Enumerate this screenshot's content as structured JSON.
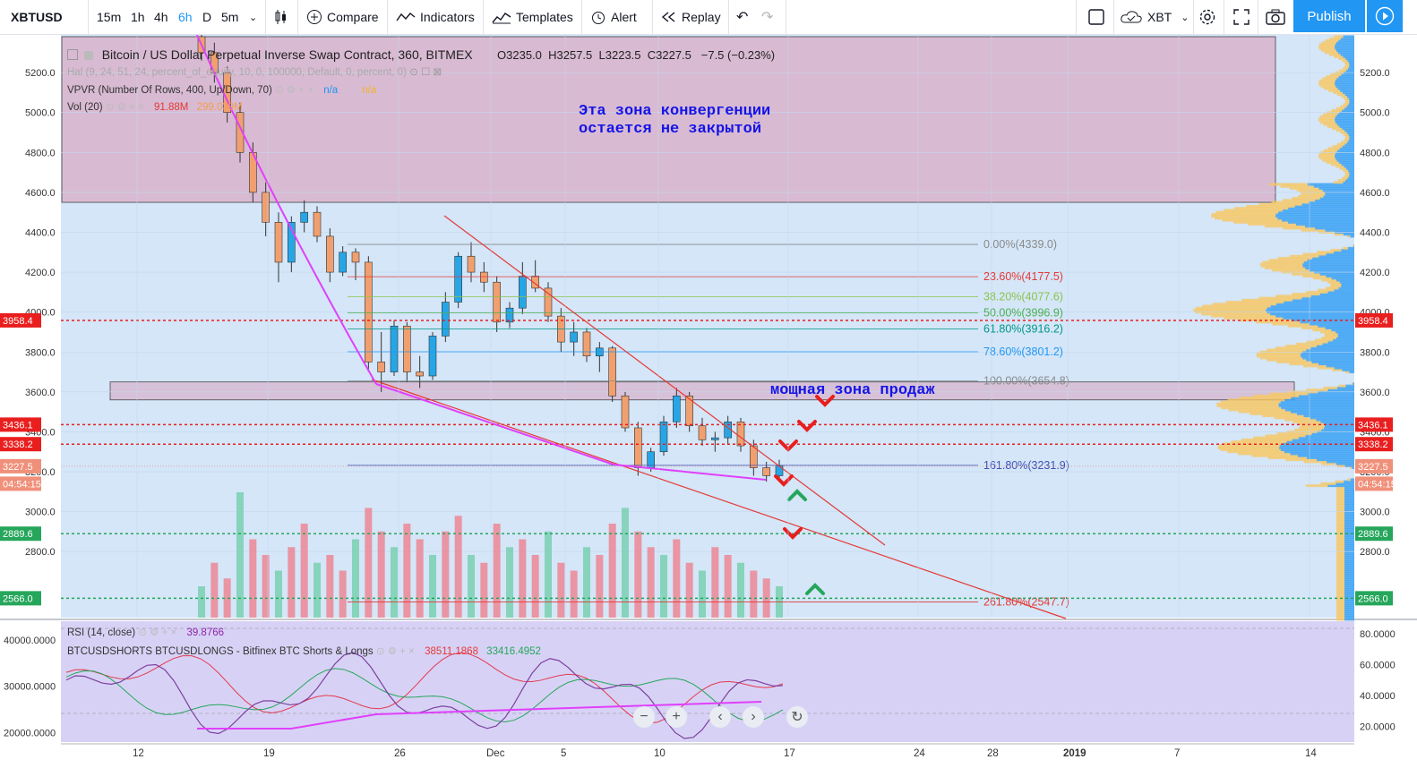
{
  "toolbar": {
    "symbol": "XBTUSD",
    "intervals": [
      "15m",
      "1h",
      "4h",
      "6h",
      "D",
      "5m"
    ],
    "active_interval": "6h",
    "compare": "Compare",
    "indicators": "Indicators",
    "templates": "Templates",
    "alert": "Alert",
    "replay": "Replay",
    "currency": "XBT",
    "publish": "Publish"
  },
  "legend": {
    "title": "Bitcoin / US Dollar Perpetual Inverse Swap Contract, 360, BITMEX",
    "o_label": "O",
    "o": "3235.0",
    "h_label": "H",
    "h": "3257.5",
    "l_label": "L",
    "l": "3223.5",
    "c_label": "C",
    "c": "3227.5",
    "change": "−7.5 (−0.23%)",
    "hal": "Hal (9, 24, 51, 24, percent_of_equity, 10, 0, 100000, Default, 0, percent, 0)",
    "vpvr": "VPVR (Number Of Rows, 400, Up/Down, 70)",
    "vpvr_v1": "n/a",
    "vpvr_v2": "n/a",
    "vol": "Vol (20)",
    "vol_v1": "91.88M",
    "vol_v2": "299.039M",
    "rsi": "RSI (14, close)",
    "rsi_val": "39.8766",
    "shorts": "BTCUSDSHORTS BTCUSDLONGS - Bitfinex BTC Shorts & Longs",
    "shorts_v1": "38511.1868",
    "shorts_v2": "33416.4952"
  },
  "annotations": {
    "zone_line1": "Эта зона конвергенции",
    "zone_line2": "остается не закрытой",
    "sell_zone": "мощная зона продаж"
  },
  "price_axis": {
    "ticks": [
      "5200.0",
      "5000.0",
      "4800.0",
      "4600.0",
      "4400.0",
      "4200.0",
      "4000.0",
      "3800.0",
      "3600.0",
      "3400.0",
      "3200.0",
      "3000.0",
      "2800.0"
    ],
    "tick_values": [
      5200,
      5000,
      4800,
      4600,
      4400,
      4200,
      4000,
      3800,
      3600,
      3400,
      3200,
      3000,
      2800
    ],
    "tags_right": [
      {
        "text": "3958.4",
        "value": 3958.4,
        "color": "#e91e1e"
      },
      {
        "text": "3436.1",
        "value": 3436.1,
        "color": "#e91e1e"
      },
      {
        "text": "3338.2",
        "value": 3338.2,
        "color": "#e91e1e"
      },
      {
        "text": "3227.5",
        "value": 3227.5,
        "color": "#f0907a"
      },
      {
        "text": "04:54:15",
        "value": 3140,
        "color": "#f0907a"
      },
      {
        "text": "2889.6",
        "value": 2889.6,
        "color": "#26a65b"
      },
      {
        "text": "2566.0",
        "value": 2566.0,
        "color": "#26a65b"
      }
    ],
    "tags_left": [
      {
        "text": "3958.4",
        "value": 3958.4,
        "color": "#e91e1e"
      },
      {
        "text": "3436.1",
        "value": 3436.1,
        "color": "#e91e1e"
      },
      {
        "text": "3338.2",
        "value": 3338.2,
        "color": "#e91e1e"
      },
      {
        "text": "3227.5",
        "value": 3227.5,
        "color": "#f0907a"
      },
      {
        "text": "04:54:15",
        "value": 3140,
        "color": "#f0907a"
      },
      {
        "text": "2889.6",
        "value": 2889.6,
        "color": "#26a65b"
      },
      {
        "text": "2566.0",
        "value": 2566.0,
        "color": "#26a65b"
      }
    ]
  },
  "fib": [
    {
      "label": "0.00%(4339.0)",
      "value": 4339.0,
      "color": "#8a8a8a"
    },
    {
      "label": "23.60%(4177.5)",
      "value": 4177.5,
      "color": "#e53935"
    },
    {
      "label": "38.20%(4077.6)",
      "value": 4077.6,
      "color": "#8bc34a"
    },
    {
      "label": "50.00%(3996.9)",
      "value": 3996.9,
      "color": "#4caf50"
    },
    {
      "label": "61.80%(3916.2)",
      "value": 3916.2,
      "color": "#009688"
    },
    {
      "label": "78.60%(3801.2)",
      "value": 3801.2,
      "color": "#2196f3"
    },
    {
      "label": "100.00%(3654.8)",
      "value": 3654.8,
      "color": "#8a8a8a"
    },
    {
      "label": "161.80%(3231.9)",
      "value": 3231.9,
      "color": "#3f51b5"
    },
    {
      "label": "261.80%(2547.7)",
      "value": 2547.7,
      "color": "#e53935"
    }
  ],
  "time_axis": {
    "labels": [
      "12",
      "19",
      "26",
      "Dec",
      "5",
      "10",
      "17",
      "24",
      "28",
      "2019",
      "7",
      "14"
    ]
  },
  "rsi_axis": {
    "ticks": [
      "80.0000",
      "60.0000",
      "40.0000",
      "20.0000"
    ],
    "tick_values": [
      80,
      60,
      40,
      20
    ]
  },
  "shorts_axis": {
    "ticks": [
      "40000.0000",
      "30000.0000",
      "20000.0000"
    ],
    "tick_values": [
      40000,
      30000,
      20000
    ]
  },
  "chart_data": {
    "type": "candlestick",
    "symbol": "XBTUSD",
    "interval": "6h",
    "ylim": [
      2460,
      5380
    ],
    "candles_ohlc": [
      [
        5380,
        5400,
        5260,
        5300
      ],
      [
        5300,
        5350,
        5150,
        5200
      ],
      [
        5200,
        5230,
        4950,
        5000
      ],
      [
        5000,
        5050,
        4750,
        4800
      ],
      [
        4800,
        4850,
        4550,
        4600
      ],
      [
        4600,
        4650,
        4380,
        4450
      ],
      [
        4450,
        4500,
        4150,
        4250
      ],
      [
        4250,
        4480,
        4200,
        4450
      ],
      [
        4450,
        4560,
        4400,
        4500
      ],
      [
        4500,
        4530,
        4350,
        4380
      ],
      [
        4380,
        4420,
        4150,
        4200
      ],
      [
        4200,
        4330,
        4180,
        4300
      ],
      [
        4300,
        4320,
        4160,
        4250
      ],
      [
        4250,
        4280,
        3700,
        3750
      ],
      [
        3750,
        3900,
        3600,
        3700
      ],
      [
        3700,
        3960,
        3680,
        3930
      ],
      [
        3930,
        3950,
        3650,
        3700
      ],
      [
        3700,
        3780,
        3620,
        3680
      ],
      [
        3680,
        3900,
        3660,
        3880
      ],
      [
        3880,
        4100,
        3850,
        4050
      ],
      [
        4050,
        4300,
        4020,
        4280
      ],
      [
        4280,
        4350,
        4150,
        4200
      ],
      [
        4200,
        4250,
        4100,
        4150
      ],
      [
        4150,
        4180,
        3900,
        3950
      ],
      [
        3950,
        4050,
        3920,
        4020
      ],
      [
        4020,
        4250,
        3990,
        4180
      ],
      [
        4180,
        4260,
        4100,
        4120
      ],
      [
        4120,
        4150,
        3950,
        3980
      ],
      [
        3980,
        4020,
        3800,
        3850
      ],
      [
        3850,
        3950,
        3780,
        3900
      ],
      [
        3900,
        3920,
        3750,
        3780
      ],
      [
        3780,
        3850,
        3700,
        3820
      ],
      [
        3820,
        3830,
        3550,
        3580
      ],
      [
        3580,
        3600,
        3400,
        3420
      ],
      [
        3420,
        3450,
        3180,
        3220
      ],
      [
        3220,
        3320,
        3200,
        3300
      ],
      [
        3300,
        3480,
        3280,
        3450
      ],
      [
        3450,
        3620,
        3420,
        3580
      ],
      [
        3580,
        3600,
        3400,
        3430
      ],
      [
        3430,
        3470,
        3330,
        3360
      ],
      [
        3360,
        3400,
        3300,
        3370
      ],
      [
        3370,
        3480,
        3340,
        3450
      ],
      [
        3450,
        3470,
        3300,
        3330
      ],
      [
        3330,
        3360,
        3180,
        3220
      ],
      [
        3220,
        3250,
        3150,
        3180
      ],
      [
        3180,
        3260,
        3160,
        3230
      ]
    ],
    "volume": [
      20,
      35,
      25,
      80,
      50,
      40,
      30,
      45,
      60,
      35,
      40,
      30,
      50,
      70,
      55,
      45,
      60,
      50,
      40,
      55,
      65,
      40,
      35,
      60,
      45,
      50,
      40,
      55,
      35,
      30,
      45,
      40,
      60,
      70,
      55,
      45,
      40,
      50,
      35,
      30,
      45,
      40,
      35,
      30,
      25,
      20
    ],
    "horizontal_levels": [
      3958.4,
      3436.1,
      3338.2,
      2889.6,
      2566.0
    ],
    "current_price": 3227.5,
    "zones": [
      {
        "name": "convergence-zone",
        "from": 4550,
        "to": 5380
      },
      {
        "name": "sell-zone",
        "from": 3560,
        "to": 3650
      }
    ]
  },
  "nav": {
    "minus": "−",
    "plus": "+",
    "left": "‹",
    "right": "›",
    "reset": "↻"
  }
}
